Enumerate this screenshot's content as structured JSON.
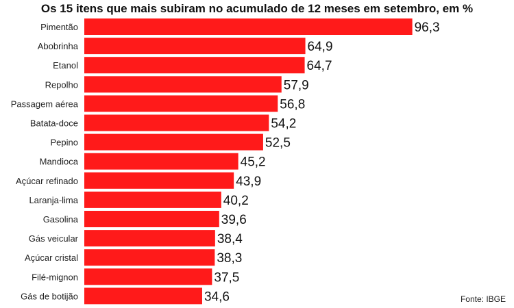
{
  "chart_data": {
    "type": "bar",
    "orientation": "horizontal",
    "title": "Os 15 itens que mais subiram no acumulado de 12 meses em setembro, em %",
    "categories": [
      "Pimentão",
      "Abobrinha",
      "Etanol",
      "Repolho",
      "Passagem aérea",
      "Batata-doce",
      "Pepino",
      "Mandioca",
      "Açúcar refinado",
      "Laranja-lima",
      "Gasolina",
      "Gás veicular",
      "Açúcar cristal",
      "Filé-mignon",
      "Gás de botijão"
    ],
    "values": [
      96.3,
      64.9,
      64.7,
      57.9,
      56.8,
      54.2,
      52.5,
      45.2,
      43.9,
      40.2,
      39.6,
      38.4,
      38.3,
      37.5,
      34.6
    ],
    "value_labels": [
      "96,3",
      "64,9",
      "64,7",
      "57,9",
      "56,8",
      "54,2",
      "52,5",
      "45,2",
      "43,9",
      "40,2",
      "39,6",
      "38,4",
      "38,3",
      "37,5",
      "34,6"
    ],
    "bar_color": "#ff1a1a",
    "grid": false,
    "legend": "none"
  },
  "source": "Fonte: IBGE"
}
